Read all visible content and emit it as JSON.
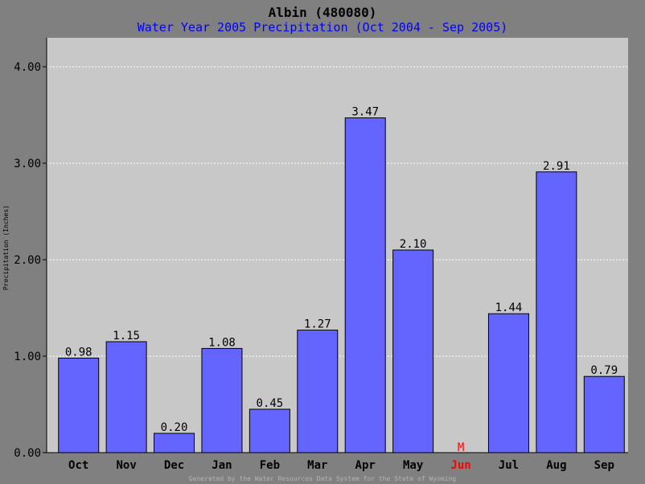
{
  "chart_data": {
    "type": "bar",
    "title": "Albin (480080)",
    "subtitle": "Water Year 2005 Precipitation (Oct 2004 - Sep 2005)",
    "ylabel": "Precipitation (Inches)",
    "xlabel": "",
    "ylim": [
      0,
      4.3
    ],
    "yticks": [
      "0.00",
      "1.00",
      "2.00",
      "3.00",
      "4.00"
    ],
    "categories": [
      "Oct",
      "Nov",
      "Dec",
      "Jan",
      "Feb",
      "Mar",
      "Apr",
      "May",
      "Jun",
      "Jul",
      "Aug",
      "Sep"
    ],
    "values": [
      0.98,
      1.15,
      0.2,
      1.08,
      0.45,
      1.27,
      3.47,
      2.1,
      null,
      1.44,
      2.91,
      0.79
    ],
    "value_labels": [
      "0.98",
      "1.15",
      "0.20",
      "1.08",
      "0.45",
      "1.27",
      "3.47",
      "2.10",
      "M",
      "1.44",
      "2.91",
      "0.79"
    ],
    "missing_categories": [
      "Jun"
    ],
    "grid": true,
    "footer": "Generated by the Water Resources Data System for the State of Wyoming"
  },
  "colors": {
    "background": "#808080",
    "plot_area": "#c8c8c8",
    "bar_fill": "#6464ff",
    "bar_stroke": "#000000",
    "title_color": "#000000",
    "subtitle_color": "#0000ff",
    "missing_color": "#ff0000",
    "grid_color": "#ffffff",
    "footer_color": "#b4b4b4"
  }
}
